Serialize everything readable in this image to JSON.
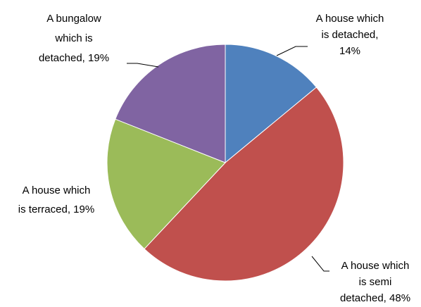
{
  "chart_data": {
    "type": "pie",
    "categories": [
      "A house which is detached",
      "A house which is semi detached",
      "A house which is terraced",
      "A bungalow which is detached"
    ],
    "values": [
      14,
      48,
      19,
      19
    ],
    "value_labels": [
      [
        "A house which",
        "is detached,",
        "14%"
      ],
      [
        "A house which",
        "is semi",
        "detached, 48%"
      ],
      [
        "A house which",
        "is terraced, 19%"
      ],
      [
        "A bungalow",
        "which is",
        "detached, 19%"
      ]
    ],
    "colors": [
      "#4f81bd",
      "#c0504d",
      "#9bbb59",
      "#8064a2"
    ]
  }
}
